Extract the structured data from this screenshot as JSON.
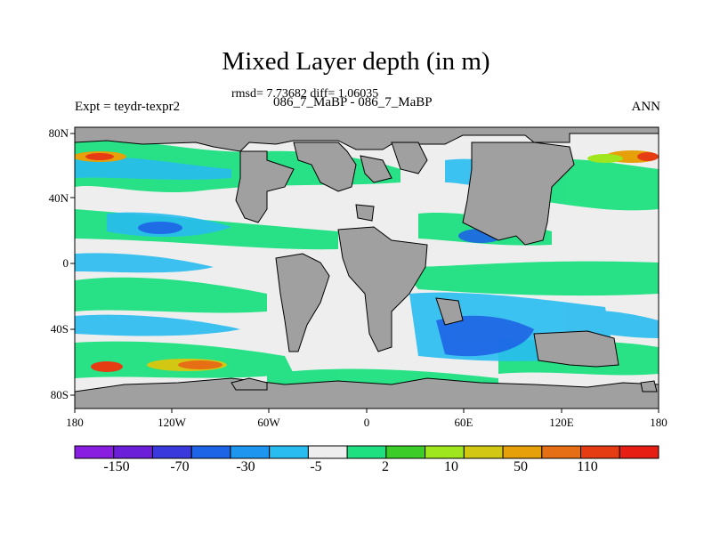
{
  "title": "Mixed Layer depth (in m)",
  "stats_line": "rmsd= 7.73682 diff= 1.06035",
  "experiments_line": "086_7_MaBP - 086_7_MaBP",
  "left_string": "Expt = teydr-texpr2",
  "right_string": "ANN",
  "y_tick_labels": [
    "80N",
    "40N",
    "0",
    "40S",
    "80S"
  ],
  "x_tick_labels": [
    "180",
    "120W",
    "60W",
    "0",
    "60E",
    "120E",
    "180"
  ],
  "colorbar": {
    "labels": [
      "-150",
      "-70",
      "-30",
      "-5",
      "2",
      "10",
      "50",
      "110"
    ],
    "colors": [
      "#8a1ee0",
      "#6b1fd8",
      "#3a3adc",
      "#1e64e6",
      "#1e96f0",
      "#28bcf0",
      "#eeeeee",
      "#1ee080",
      "#3ccd28",
      "#a0e61e",
      "#d2c814",
      "#e6a00a",
      "#e66e14",
      "#e63c14",
      "#e61e14"
    ]
  },
  "colors": {
    "land": "#a0a0a0",
    "neutral": "#eeeeee"
  }
}
